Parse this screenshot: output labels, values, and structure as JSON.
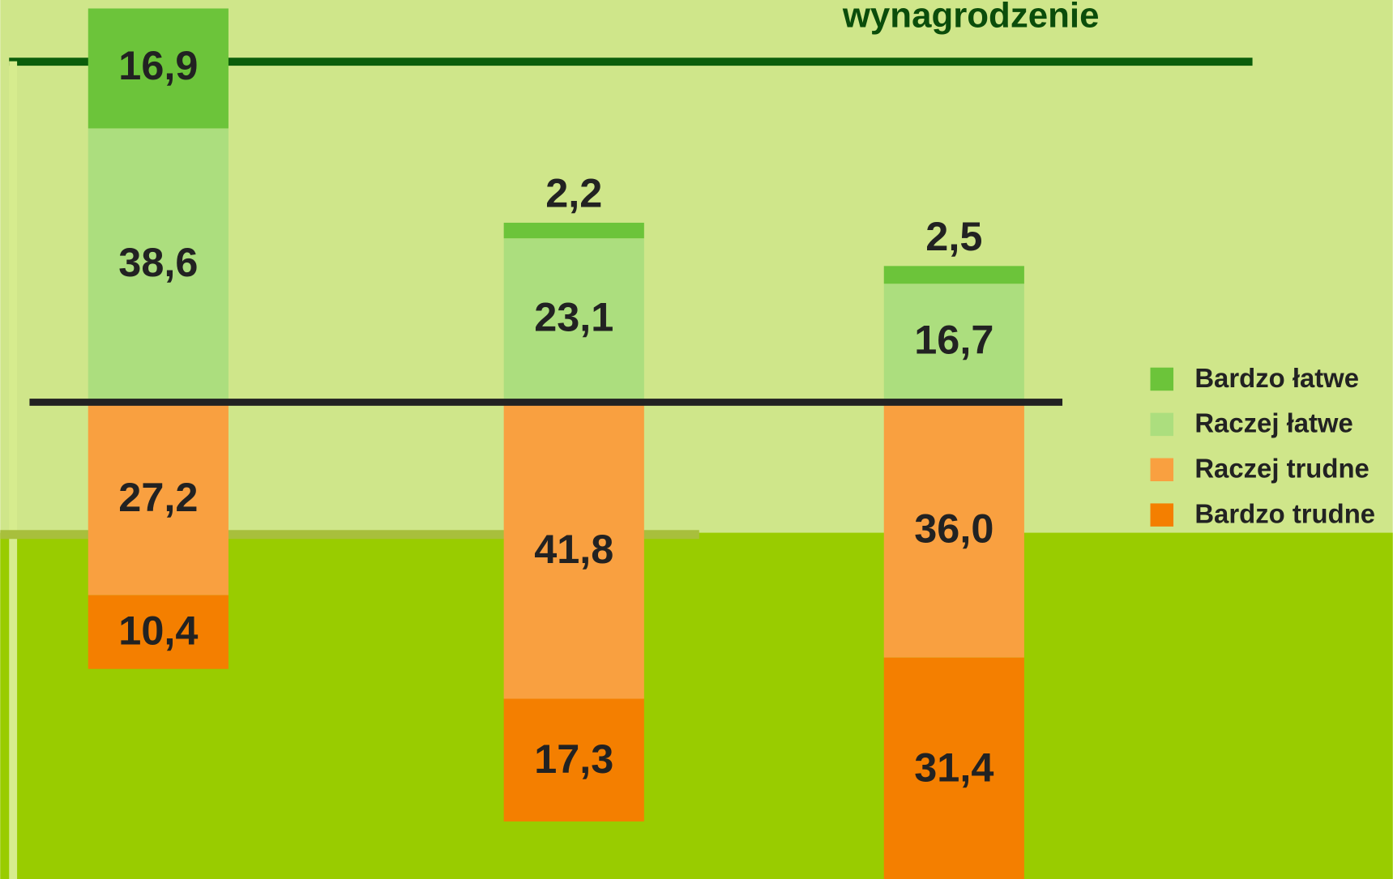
{
  "chart_data": {
    "type": "bar",
    "stacked": true,
    "categories": [
      null,
      null,
      "wynagrodzenie"
    ],
    "series": [
      {
        "name": "Bardzo łatwe",
        "color": "#6cc43a",
        "values": [
          16.9,
          2.2,
          2.5
        ],
        "value_labels": [
          "16,9",
          "2,2",
          "2,5"
        ]
      },
      {
        "name": "Raczej łatwe",
        "color": "#acde7e",
        "values": [
          38.6,
          23.1,
          16.7
        ],
        "value_labels": [
          "38,6",
          "23,1",
          "16,7"
        ]
      },
      {
        "name": "Raczej trudne",
        "color": "#f9a040",
        "values": [
          27.2,
          41.8,
          36.0
        ],
        "value_labels": [
          "27,2",
          "41,8",
          "36,0"
        ]
      },
      {
        "name": "Bardzo trudne",
        "color": "#f47f00",
        "values": [
          10.4,
          17.3,
          31.4
        ],
        "value_labels": [
          "10,4",
          "17,3",
          "31,4"
        ]
      }
    ],
    "legend": "right"
  }
}
